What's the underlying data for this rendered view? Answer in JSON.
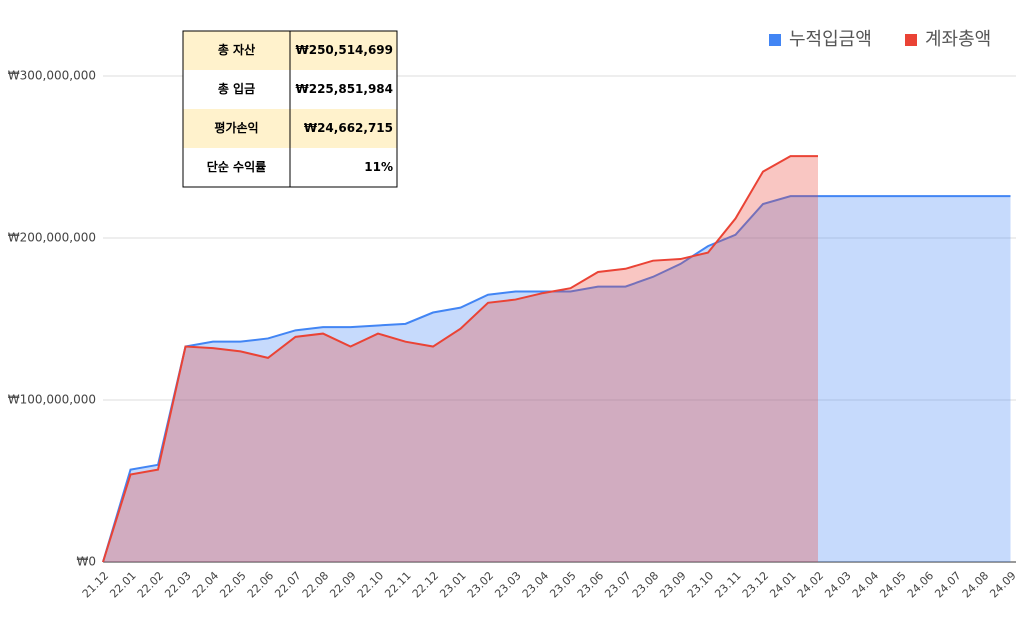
{
  "chart_data": {
    "type": "area",
    "categories": [
      "21.12",
      "22.01",
      "22.02",
      "22.03",
      "22.04",
      "22.05",
      "22.06",
      "22.07",
      "22.08",
      "22.09",
      "22.10",
      "22.11",
      "22.12",
      "23.01",
      "23.02",
      "23.03",
      "23.04",
      "23.05",
      "23.06",
      "23.07",
      "23.08",
      "23.09",
      "23.10",
      "23.11",
      "23.12",
      "24.01",
      "24.02",
      "24.03",
      "24.04",
      "24.05",
      "24.06",
      "24.07",
      "24.08",
      "24.09"
    ],
    "series": [
      {
        "name": "누적입금액",
        "color": "#4285f4",
        "values": [
          0,
          57000000,
          60000000,
          133000000,
          136000000,
          136000000,
          138000000,
          143000000,
          145000000,
          145000000,
          146000000,
          147000000,
          154000000,
          157000000,
          165000000,
          167000000,
          167000000,
          167000000,
          170000000,
          170000000,
          176000000,
          184000000,
          195000000,
          202000000,
          221000000,
          225851984,
          225851984,
          225851984,
          225851984,
          225851984,
          225851984,
          225851984,
          225851984,
          225851984
        ]
      },
      {
        "name": "계좌총액",
        "color": "#ea4335",
        "values": [
          0,
          54000000,
          57000000,
          133000000,
          132000000,
          130000000,
          126000000,
          139000000,
          141000000,
          133000000,
          141000000,
          136000000,
          133000000,
          144000000,
          160000000,
          162000000,
          166000000,
          169000000,
          179000000,
          181000000,
          186000000,
          187000000,
          191000000,
          212000000,
          241000000,
          250514699,
          250514699,
          null,
          null,
          null,
          null,
          null,
          null,
          null
        ]
      }
    ],
    "ylim": [
      0,
      300000000
    ],
    "yticks": [
      {
        "value": 0,
        "label": "₩0"
      },
      {
        "value": 100000000,
        "label": "₩100,000,000"
      },
      {
        "value": 200000000,
        "label": "₩200,000,000"
      },
      {
        "value": 300000000,
        "label": "₩300,000,000"
      }
    ],
    "grid": true,
    "legend": "top-right"
  },
  "table": {
    "rows": [
      [
        "총 자산",
        "₩250,514,699"
      ],
      [
        "총 입금",
        "₩225,851,984"
      ],
      [
        "평가손익",
        "₩24,662,715"
      ],
      [
        "단순 수익률",
        "11%"
      ]
    ]
  }
}
